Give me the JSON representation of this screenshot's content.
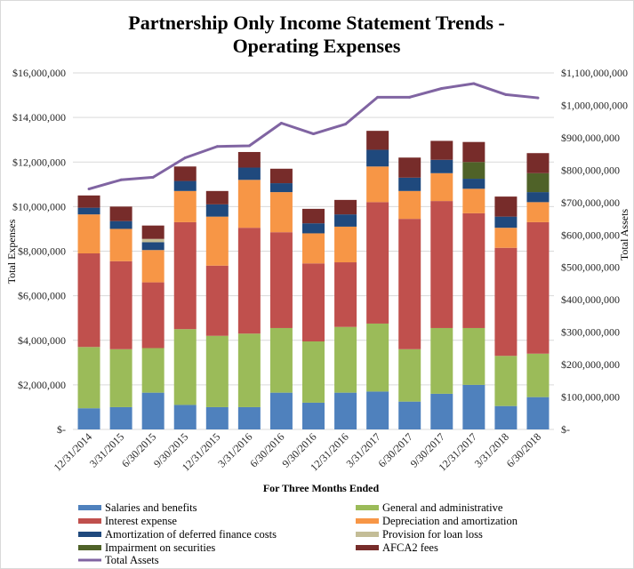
{
  "chart_data": {
    "type": "bar",
    "stacked": true,
    "title_line1": "Partnership Only Income Statement Trends -",
    "title_line2": "Operating Expenses",
    "xlabel": "For Three Months  Ended",
    "ylabel": "Total Expenses",
    "y2label": "Total Assets",
    "ylim": [
      0,
      16000000
    ],
    "y2lim": [
      0,
      1100000000
    ],
    "yticks": [
      "$-",
      "$2,000,000",
      "$4,000,000",
      "$6,000,000",
      "$8,000,000",
      "$10,000,000",
      "$12,000,000",
      "$14,000,000",
      "$16,000,000"
    ],
    "y2ticks": [
      "$-",
      "$100,000,000",
      "$200,000,000",
      "$300,000,000",
      "$400,000,000",
      "$500,000,000",
      "$600,000,000",
      "$700,000,000",
      "$800,000,000",
      "$900,000,000",
      "$1,000,000,000",
      "$1,100,000,000"
    ],
    "categories": [
      "12/31/2014",
      "3/31/2015",
      "6/30/2015",
      "9/30/2015",
      "12/31/2015",
      "3/31/2016",
      "6/30/2016",
      "9/30/2016",
      "12/31/2016",
      "3/31/2017",
      "6/30/2017",
      "9/30/2017",
      "12/31/2017",
      "3/31/2018",
      "6/30/2018"
    ],
    "series": [
      {
        "name": "Salaries and benefits",
        "color": "#4f81bd",
        "values": [
          950000,
          1000000,
          1650000,
          1100000,
          1000000,
          1000000,
          1650000,
          1200000,
          1650000,
          1700000,
          1250000,
          1600000,
          2000000,
          1050000,
          1450000
        ]
      },
      {
        "name": "General and administrative",
        "color": "#9bbb59",
        "values": [
          2750000,
          2600000,
          2000000,
          3400000,
          3200000,
          3300000,
          2900000,
          2750000,
          2950000,
          3050000,
          2350000,
          2950000,
          2550000,
          2250000,
          1950000
        ]
      },
      {
        "name": "Interest expense",
        "color": "#c0504d",
        "values": [
          4200000,
          3950000,
          2950000,
          4800000,
          3150000,
          4750000,
          4300000,
          3500000,
          2900000,
          5450000,
          5850000,
          5700000,
          5150000,
          4850000,
          5900000
        ]
      },
      {
        "name": "Depreciation and amortization",
        "color": "#f79646",
        "values": [
          1750000,
          1450000,
          1450000,
          1400000,
          2200000,
          2150000,
          1800000,
          1350000,
          1600000,
          1600000,
          1250000,
          1250000,
          1100000,
          900000,
          900000
        ]
      },
      {
        "name": "Amortization of deferred finance costs",
        "color": "#1f497d",
        "values": [
          300000,
          350000,
          350000,
          450000,
          550000,
          550000,
          400000,
          450000,
          550000,
          750000,
          600000,
          600000,
          450000,
          500000,
          450000
        ]
      },
      {
        "name": "Provision for loan loss",
        "color": "#c4bd97",
        "values": [
          0,
          0,
          150000,
          0,
          0,
          0,
          0,
          0,
          0,
          0,
          0,
          0,
          0,
          0,
          0
        ]
      },
      {
        "name": "Impairment on securities",
        "color": "#4f6228",
        "values": [
          0,
          0,
          0,
          0,
          0,
          0,
          0,
          0,
          0,
          0,
          0,
          0,
          750000,
          0,
          850000
        ]
      },
      {
        "name": "AFCA2 fees",
        "color": "#772c2a",
        "values": [
          550000,
          650000,
          600000,
          650000,
          600000,
          700000,
          650000,
          650000,
          650000,
          850000,
          900000,
          850000,
          900000,
          900000,
          900000
        ]
      }
    ],
    "line_series": {
      "name": "Total Assets",
      "color": "#8064a2",
      "axis": "secondary",
      "values": [
        742000000,
        770000000,
        778000000,
        838000000,
        873000000,
        875000000,
        945000000,
        912000000,
        942000000,
        1025000000,
        1025000000,
        1052000000,
        1067000000,
        1033000000,
        1023000000
      ]
    },
    "legend_position": "bottom",
    "grid": true
  }
}
